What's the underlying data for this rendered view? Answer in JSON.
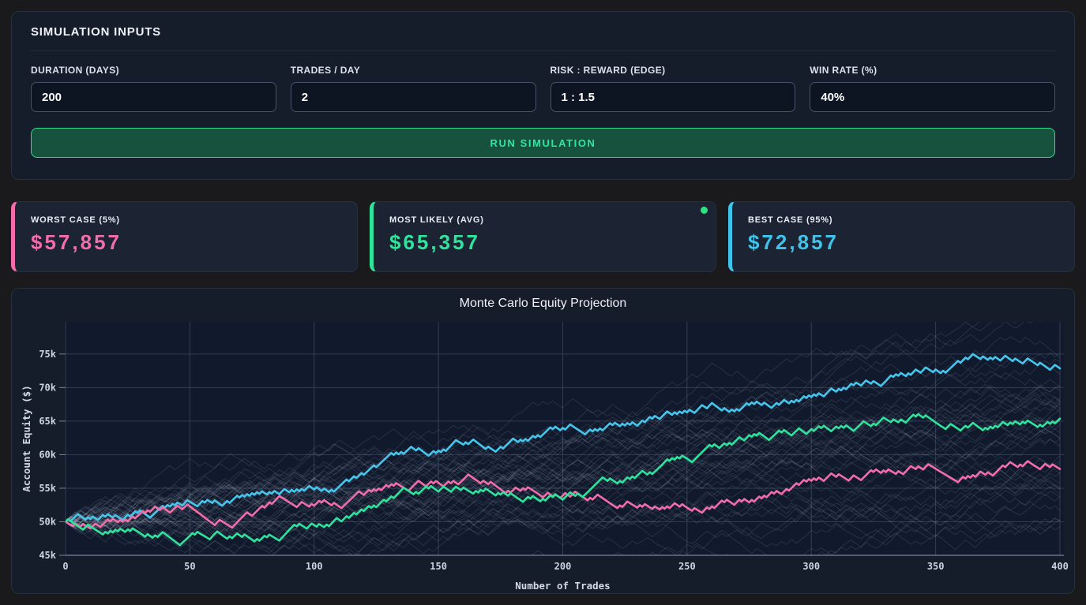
{
  "simulation_inputs": {
    "title": "SIMULATION INPUTS",
    "fields": [
      {
        "label": "DURATION (DAYS)",
        "value": "200"
      },
      {
        "label": "TRADES / DAY",
        "value": "2"
      },
      {
        "label": "RISK : REWARD (EDGE)",
        "value": "1 : 1.5"
      },
      {
        "label": "WIN RATE (%)",
        "value": "40%"
      }
    ],
    "run_button_label": "RUN SIMULATION"
  },
  "theme": {
    "button_bg": "#16523e",
    "button_border": "#2ce08f",
    "button_text": "#2ee6a0",
    "worst_accent": "#f26daa",
    "likely_accent": "#2fe39c",
    "best_accent": "#3ec3ea"
  },
  "summary_cards": [
    {
      "label": "WORST CASE (5%)",
      "value": "$57,857",
      "accent": "#f26daa"
    },
    {
      "label": "MOST LIKELY (AVG)",
      "value": "$65,357",
      "accent": "#2fe39c",
      "dot_color": "#2ce47e"
    },
    {
      "label": "BEST CASE (95%)",
      "value": "$72,857",
      "accent": "#3ec3ea"
    }
  ],
  "chart_data": {
    "type": "line",
    "title": "Monte Carlo Equity Projection",
    "xlabel": "Number of Trades",
    "ylabel": "Account Equity ($)",
    "xlim": [
      0,
      400
    ],
    "ylim": [
      45000,
      79800
    ],
    "xticks": [
      0,
      50,
      100,
      150,
      200,
      250,
      300,
      350,
      400
    ],
    "xtick_labels": [
      "0",
      "50",
      "100",
      "150",
      "200",
      "250",
      "300",
      "350",
      "400"
    ],
    "yticks": [
      45000,
      50000,
      55000,
      60000,
      65000,
      70000,
      75000
    ],
    "ytick_labels": [
      "45k",
      "50k",
      "55k",
      "60k",
      "65k",
      "70k",
      "75k"
    ],
    "grid": true,
    "legend": "none",
    "plot_bg": "#111a2d",
    "grid_color": "#323d54",
    "axis_color": "#79839a",
    "sim_step": {
      "win": 375,
      "loss": 250
    },
    "series": [
      {
        "name": "best-case-path",
        "color": "#45c6ec",
        "seed": 11,
        "x_step": 10,
        "values": [
          50000,
          50400,
          51000,
          51700,
          52100,
          53000,
          53200,
          53600,
          54300,
          54400,
          54800,
          55200,
          57000,
          59900,
          60900,
          60600,
          61500,
          61200,
          62400,
          62900,
          64000,
          63400,
          64400,
          64300,
          65700,
          66300,
          67700,
          66800,
          67400,
          67900,
          68600,
          69400,
          70300,
          71000,
          71900,
          72700,
          73700,
          74400,
          74200,
          73600,
          72857
        ]
      },
      {
        "name": "most-likely-path",
        "color": "#2fe39c",
        "seed": 22,
        "x_step": 10,
        "values": [
          50000,
          49300,
          48800,
          48300,
          48200,
          47900,
          48200,
          48000,
          47900,
          48800,
          49500,
          50300,
          51600,
          53400,
          54100,
          54500,
          55100,
          54700,
          54000,
          53300,
          53300,
          54400,
          56200,
          56900,
          58500,
          59400,
          61200,
          62200,
          63000,
          63400,
          63800,
          64200,
          64600,
          65300,
          65600,
          64800,
          63600,
          64000,
          64800,
          64400,
          65357
        ]
      },
      {
        "name": "worst-case-path",
        "color": "#f26daa",
        "seed": 33,
        "x_step": 10,
        "values": [
          50000,
          49000,
          50200,
          51200,
          51900,
          52300,
          49500,
          50300,
          52100,
          52900,
          52400,
          52300,
          54000,
          55200,
          55400,
          55800,
          56300,
          55600,
          54700,
          54200,
          53900,
          53200,
          52500,
          52100,
          52200,
          52100,
          52300,
          52900,
          53500,
          54900,
          56100,
          56700,
          56200,
          57400,
          58300,
          57900,
          56300,
          57000,
          58900,
          58300,
          57857
        ]
      }
    ],
    "background_paths": {
      "count": 46,
      "seed": 1337,
      "start": 50000,
      "trades": 400,
      "step_trades": 2,
      "up_step": 620,
      "down_step": 500,
      "color": "#c7cfdd",
      "opacity": 0.13
    }
  }
}
